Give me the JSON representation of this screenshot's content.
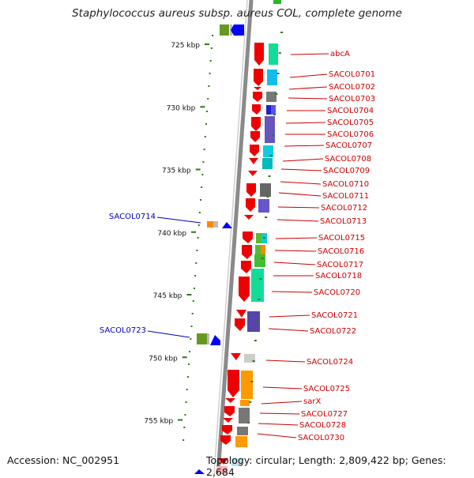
{
  "title": "Staphylococcus aureus subsp. aureus COL, complete genome",
  "accession_text": "Accession: NC_002951",
  "topology_text": "Topology: circular; Length: 2,809,422 bp; Genes: 2,684",
  "colors": {
    "backbone": "#8a8a8a",
    "gene_label_forward": "#cc0000",
    "gene_label_reverse": "#0000bb",
    "tick": "#2a7a10"
  },
  "ruler": [
    {
      "label": "725 kbp",
      "kbp": 725
    },
    {
      "label": "730 kbp",
      "kbp": 730
    },
    {
      "label": "735 kbp",
      "kbp": 735
    },
    {
      "label": "740 kbp",
      "kbp": 740
    },
    {
      "label": "745 kbp",
      "kbp": 745
    },
    {
      "label": "750 kbp",
      "kbp": 750
    },
    {
      "label": "755 kbp",
      "kbp": 755
    }
  ],
  "genes": [
    {
      "name": "abcA",
      "strand": "forward"
    },
    {
      "name": "SACOL0701",
      "strand": "forward"
    },
    {
      "name": "SACOL0702",
      "strand": "forward"
    },
    {
      "name": "SACOL0703",
      "strand": "forward"
    },
    {
      "name": "SACOL0704",
      "strand": "forward"
    },
    {
      "name": "SACOL0705",
      "strand": "forward"
    },
    {
      "name": "SACOL0706",
      "strand": "forward"
    },
    {
      "name": "SACOL0707",
      "strand": "forward"
    },
    {
      "name": "SACOL0708",
      "strand": "forward"
    },
    {
      "name": "SACOL0709",
      "strand": "forward"
    },
    {
      "name": "SACOL0710",
      "strand": "forward"
    },
    {
      "name": "SACOL0711",
      "strand": "forward"
    },
    {
      "name": "SACOL0712",
      "strand": "forward"
    },
    {
      "name": "SACOL0713",
      "strand": "forward"
    },
    {
      "name": "SACOL0714",
      "strand": "reverse"
    },
    {
      "name": "SACOL0715",
      "strand": "forward"
    },
    {
      "name": "SACOL0716",
      "strand": "forward"
    },
    {
      "name": "SACOL0717",
      "strand": "forward"
    },
    {
      "name": "SACOL0718",
      "strand": "forward"
    },
    {
      "name": "SACOL0720",
      "strand": "forward"
    },
    {
      "name": "SACOL0721",
      "strand": "forward"
    },
    {
      "name": "SACOL0722",
      "strand": "forward"
    },
    {
      "name": "SACOL0723",
      "strand": "reverse"
    },
    {
      "name": "SACOL0724",
      "strand": "forward"
    },
    {
      "name": "SACOL0725",
      "strand": "forward"
    },
    {
      "name": "sarX",
      "strand": "forward"
    },
    {
      "name": "SACOL0727",
      "strand": "forward"
    },
    {
      "name": "SACOL0728",
      "strand": "forward"
    },
    {
      "name": "SACOL0730",
      "strand": "forward"
    }
  ]
}
